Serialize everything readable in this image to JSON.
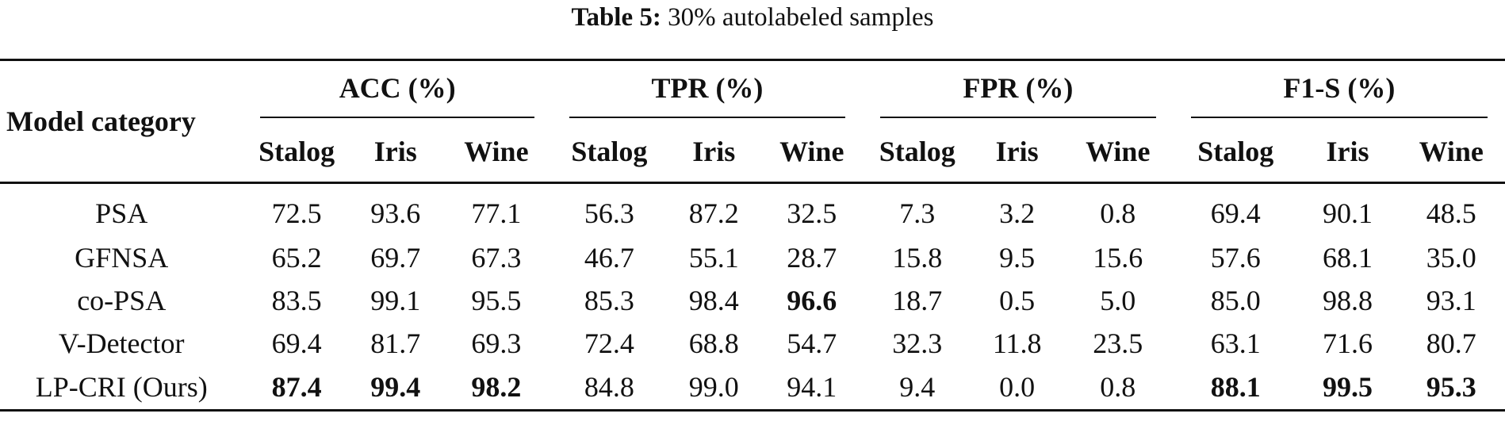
{
  "caption": {
    "label": "Table 5:",
    "text": "30% autolabeled samples"
  },
  "table": {
    "model_header": "Model category",
    "groups": [
      {
        "label": "ACC (%)",
        "sub": [
          "Stalog",
          "Iris",
          "Wine"
        ]
      },
      {
        "label": "TPR (%)",
        "sub": [
          "Stalog",
          "Iris",
          "Wine"
        ]
      },
      {
        "label": "FPR (%)",
        "sub": [
          "Stalog",
          "Iris",
          "Wine"
        ]
      },
      {
        "label": "F1-S (%)",
        "sub": [
          "Stalog",
          "Iris",
          "Wine"
        ]
      }
    ],
    "rows": [
      {
        "model": "PSA",
        "values": [
          "72.5",
          "93.6",
          "77.1",
          "56.3",
          "87.2",
          "32.5",
          "7.3",
          "3.2",
          "0.8",
          "69.4",
          "90.1",
          "48.5"
        ],
        "bold": [
          false,
          false,
          false,
          false,
          false,
          false,
          false,
          false,
          false,
          false,
          false,
          false
        ]
      },
      {
        "model": "GFNSA",
        "values": [
          "65.2",
          "69.7",
          "67.3",
          "46.7",
          "55.1",
          "28.7",
          "15.8",
          "9.5",
          "15.6",
          "57.6",
          "68.1",
          "35.0"
        ],
        "bold": [
          false,
          false,
          false,
          false,
          false,
          false,
          false,
          false,
          false,
          false,
          false,
          false
        ]
      },
      {
        "model": "co-PSA",
        "values": [
          "83.5",
          "99.1",
          "95.5",
          "85.3",
          "98.4",
          "96.6",
          "18.7",
          "0.5",
          "5.0",
          "85.0",
          "98.8",
          "93.1"
        ],
        "bold": [
          false,
          false,
          false,
          false,
          false,
          true,
          false,
          false,
          false,
          false,
          false,
          false
        ]
      },
      {
        "model": "V-Detector",
        "values": [
          "69.4",
          "81.7",
          "69.3",
          "72.4",
          "68.8",
          "54.7",
          "32.3",
          "11.8",
          "23.5",
          "63.1",
          "71.6",
          "80.7"
        ],
        "bold": [
          false,
          false,
          false,
          false,
          false,
          false,
          false,
          false,
          false,
          false,
          false,
          false
        ]
      },
      {
        "model": "LP-CRI (Ours)",
        "values": [
          "87.4",
          "99.4",
          "98.2",
          "84.8",
          "99.0",
          "94.1",
          "9.4",
          "0.0",
          "0.8",
          "88.1",
          "99.5",
          "95.3"
        ],
        "bold": [
          true,
          true,
          true,
          false,
          false,
          false,
          false,
          false,
          false,
          true,
          true,
          true
        ]
      }
    ]
  }
}
